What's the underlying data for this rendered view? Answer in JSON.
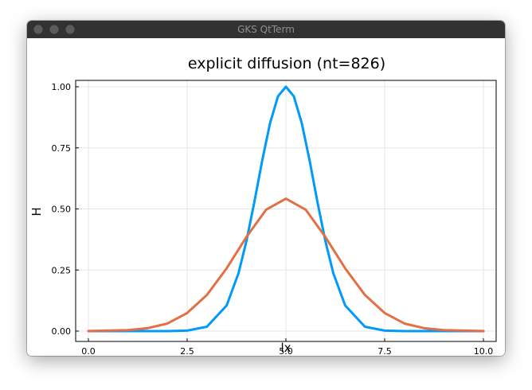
{
  "window": {
    "title": "GKS QtTerm",
    "buttons": [
      "close",
      "minimize",
      "maximize"
    ]
  },
  "chart_data": {
    "type": "line",
    "title": "explicit diffusion (nt=826)",
    "xlabel": "lx",
    "ylabel": "H",
    "xlim": [
      0,
      10
    ],
    "ylim": [
      0,
      1
    ],
    "xticks": [
      0.0,
      2.5,
      5.0,
      7.5,
      10.0
    ],
    "xtick_labels": [
      "0.0",
      "2.5",
      "5.0",
      "7.5",
      "10.0"
    ],
    "yticks": [
      0.0,
      0.25,
      0.5,
      0.75,
      1.0
    ],
    "ytick_labels": [
      "0.00",
      "0.25",
      "0.50",
      "0.75",
      "1.00"
    ],
    "grid": true,
    "legend": "none",
    "series": [
      {
        "color": "#009af9",
        "x": [
          0,
          1,
          2,
          2.5,
          3,
          3.5,
          3.8,
          4,
          4.2,
          4.4,
          4.6,
          4.8,
          5,
          5.2,
          5.4,
          5.6,
          5.8,
          6,
          6.2,
          6.5,
          7,
          7.5,
          8,
          9,
          10
        ],
        "y": [
          0,
          0,
          0.0001,
          0.002,
          0.018,
          0.105,
          0.237,
          0.368,
          0.527,
          0.698,
          0.852,
          0.961,
          1.0,
          0.961,
          0.852,
          0.698,
          0.527,
          0.368,
          0.237,
          0.105,
          0.018,
          0.002,
          0.0001,
          0,
          0
        ]
      },
      {
        "color": "#e26f46",
        "x": [
          0,
          1,
          1.5,
          2,
          2.5,
          3,
          3.5,
          4,
          4.5,
          5,
          5.5,
          6,
          6.5,
          7,
          7.5,
          8,
          8.5,
          9,
          10
        ],
        "y": [
          0.0003,
          0.004,
          0.012,
          0.031,
          0.074,
          0.148,
          0.257,
          0.385,
          0.497,
          0.542,
          0.497,
          0.385,
          0.257,
          0.148,
          0.074,
          0.031,
          0.012,
          0.004,
          0.0003
        ]
      }
    ]
  }
}
